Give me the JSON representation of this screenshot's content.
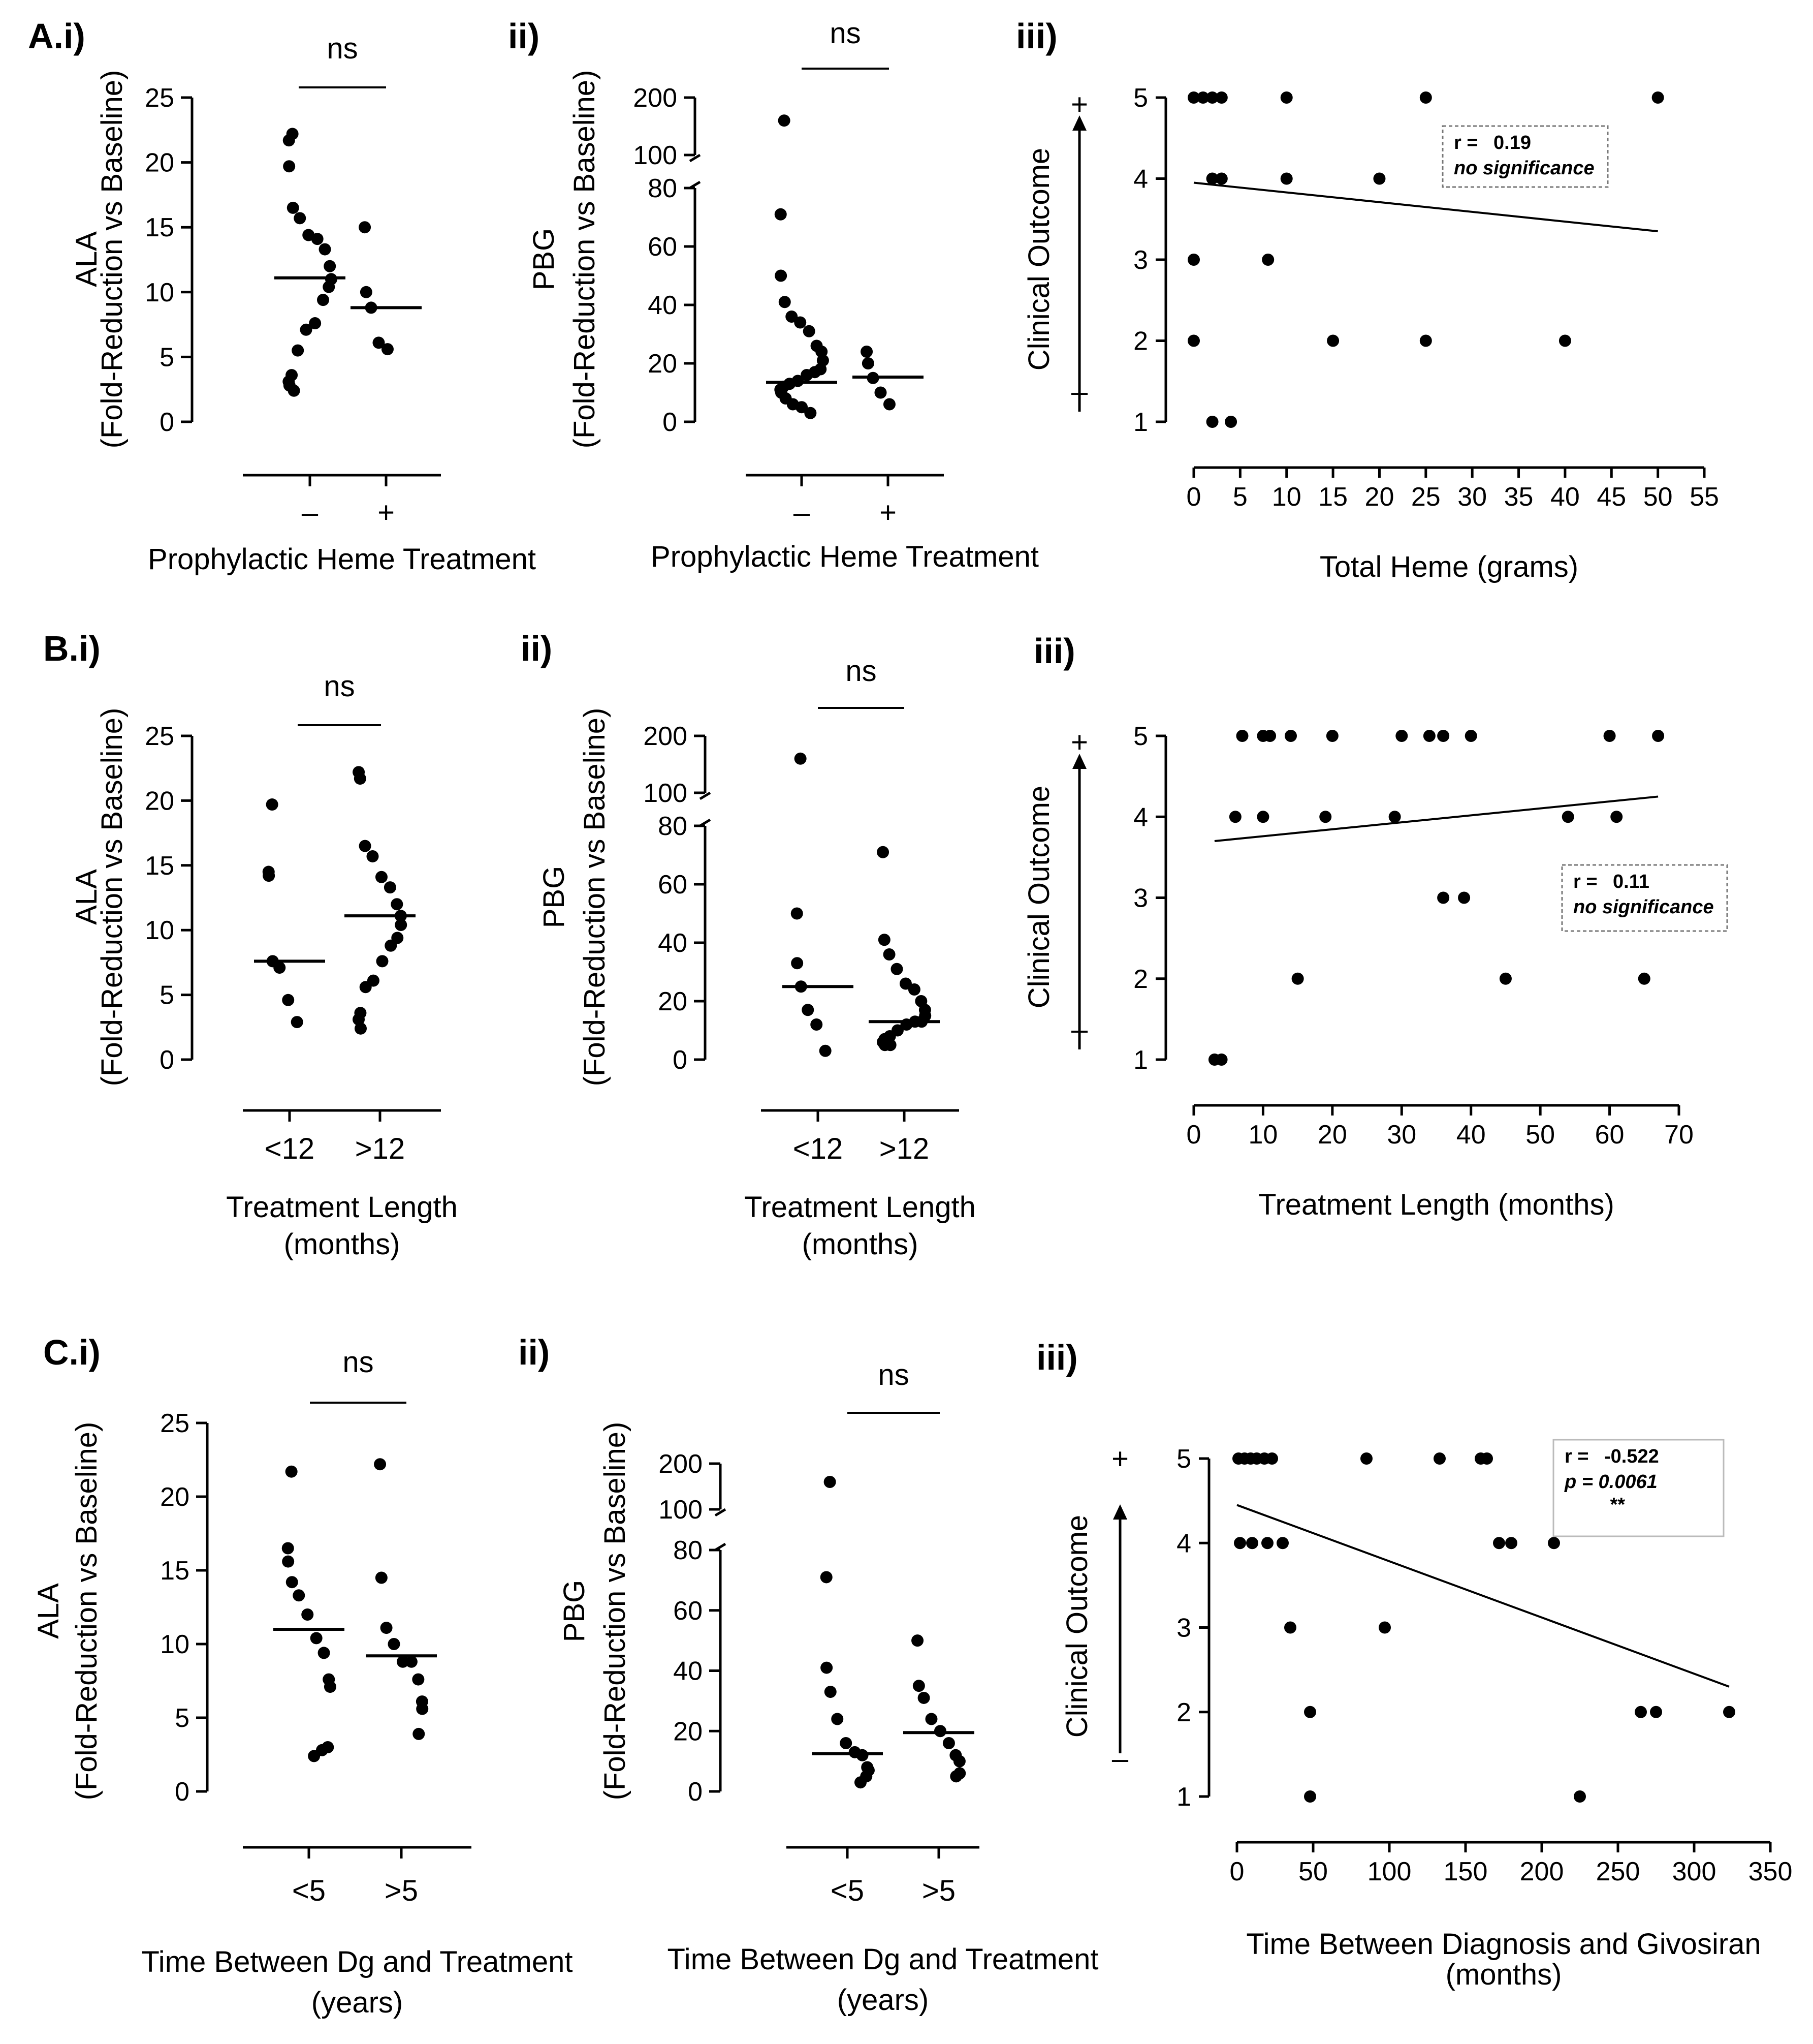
{
  "figure": {
    "rows": [
      {
        "row_label": "A.i)",
        "panel_labels": [
          "ii)",
          "iii)"
        ]
      },
      {
        "row_label": "B.i)",
        "panel_labels": [
          "ii)",
          "iii)"
        ]
      },
      {
        "row_label": "C.i)",
        "panel_labels": [
          "ii)",
          "iii)"
        ]
      }
    ]
  },
  "chart_data": [
    {
      "id": "A-i",
      "type": "scatter",
      "ylabel_lines": [
        "ALA",
        "(Fold-Reduction vs Baseline)"
      ],
      "xlabel_lines": [
        "Prophylactic Heme Treatment"
      ],
      "categories": [
        "–",
        "+"
      ],
      "yticks": [
        0,
        5,
        10,
        15,
        20,
        25
      ],
      "ylim": [
        0,
        25
      ],
      "significance": "ns",
      "groups": [
        {
          "category": "–",
          "median": 11.1,
          "values": [
            22.2,
            21.7,
            19.7,
            16.5,
            15.7,
            14.4,
            14.1,
            13.3,
            12.0,
            11.0,
            10.4,
            9.4,
            7.6,
            7.1,
            5.5,
            3.6,
            3.1,
            2.8,
            2.4
          ]
        },
        {
          "category": "+",
          "median": 8.8,
          "values": [
            15.0,
            10.0,
            8.8,
            6.1,
            5.6
          ]
        }
      ]
    },
    {
      "id": "A-ii",
      "type": "scatter",
      "ylabel_lines": [
        "PBG",
        "(Fold-Reduction vs Baseline)"
      ],
      "xlabel_lines": [
        "Prophylactic Heme Treatment"
      ],
      "categories": [
        "–",
        "+"
      ],
      "yticks": [
        0,
        20,
        40,
        60,
        80,
        100,
        200
      ],
      "ylim": [
        0,
        200
      ],
      "y_axis_break": [
        80,
        100
      ],
      "significance": "ns",
      "groups": [
        {
          "category": "–",
          "median": 13.5,
          "values": [
            160,
            71,
            50,
            41,
            36,
            34,
            31,
            26,
            24,
            21,
            18,
            17,
            16,
            14,
            13,
            12,
            11,
            10,
            8,
            6,
            5,
            3
          ]
        },
        {
          "category": "+",
          "median": 15.3,
          "values": [
            24,
            20,
            15,
            10,
            6
          ]
        }
      ]
    },
    {
      "id": "A-iii",
      "type": "scatter",
      "ylabel_lines": [
        "Clinical Outcome"
      ],
      "xlabel_lines": [
        "Total Heme (grams)"
      ],
      "xticks": [
        0,
        5,
        10,
        15,
        20,
        25,
        30,
        35,
        40,
        45,
        50,
        55
      ],
      "xlim": [
        0,
        55
      ],
      "yticks": [
        1,
        2,
        3,
        4,
        5
      ],
      "ylim": [
        1,
        5
      ],
      "y_direction_labels": {
        "top": "+",
        "bottom": "–"
      },
      "points": [
        [
          0,
          5
        ],
        [
          1,
          5
        ],
        [
          2,
          5
        ],
        [
          3,
          5
        ],
        [
          10,
          5
        ],
        [
          25,
          5
        ],
        [
          50,
          5
        ],
        [
          2,
          4
        ],
        [
          3,
          4
        ],
        [
          10,
          4
        ],
        [
          20,
          4
        ],
        [
          0,
          3
        ],
        [
          8,
          3
        ],
        [
          0,
          2
        ],
        [
          15,
          2
        ],
        [
          25,
          2
        ],
        [
          40,
          2
        ],
        [
          2,
          1
        ],
        [
          4,
          1
        ]
      ],
      "fit_line": {
        "x": [
          0,
          50
        ],
        "y": [
          3.95,
          3.35
        ]
      },
      "annotation": {
        "r_label": "r =",
        "r_value": "0.19",
        "note": "no significance"
      }
    },
    {
      "id": "B-i",
      "type": "scatter",
      "ylabel_lines": [
        "ALA",
        "(Fold-Reduction vs Baseline)"
      ],
      "xlabel_lines": [
        "Treatment Length",
        "(months)"
      ],
      "categories": [
        "<12",
        ">12"
      ],
      "yticks": [
        0,
        5,
        10,
        15,
        20,
        25
      ],
      "ylim": [
        0,
        25
      ],
      "significance": "ns",
      "groups": [
        {
          "category": "<12",
          "median": 7.6,
          "values": [
            19.7,
            14.5,
            14.2,
            7.6,
            7.1,
            4.6,
            2.9
          ]
        },
        {
          "category": ">12",
          "median": 11.1,
          "values": [
            22.2,
            21.7,
            16.5,
            15.7,
            14.1,
            13.3,
            12.0,
            11.1,
            10.4,
            9.4,
            8.8,
            7.6,
            6.1,
            5.6,
            3.6,
            3.1,
            2.4
          ]
        }
      ]
    },
    {
      "id": "B-ii",
      "type": "scatter",
      "ylabel_lines": [
        "PBG",
        "(Fold-Reduction vs Baseline)"
      ],
      "xlabel_lines": [
        "Treatment Length",
        "(months)"
      ],
      "categories": [
        "<12",
        ">12"
      ],
      "yticks": [
        0,
        20,
        40,
        60,
        80,
        100,
        200
      ],
      "ylim": [
        0,
        200
      ],
      "y_axis_break": [
        80,
        100
      ],
      "significance": "ns",
      "groups": [
        {
          "category": "<12",
          "median": 25,
          "values": [
            160,
            50,
            33,
            25,
            17,
            12,
            3
          ]
        },
        {
          "category": ">12",
          "median": 13,
          "values": [
            71,
            41,
            36,
            31,
            26,
            24,
            20,
            17,
            15,
            13,
            13,
            12,
            10,
            8,
            7,
            6,
            5,
            5
          ]
        }
      ]
    },
    {
      "id": "B-iii",
      "type": "scatter",
      "ylabel_lines": [
        "Clinical Outcome"
      ],
      "xlabel_lines": [
        "Treatment Length (months)"
      ],
      "xticks": [
        0,
        10,
        20,
        30,
        40,
        50,
        60,
        70
      ],
      "xlim": [
        0,
        70
      ],
      "yticks": [
        1,
        2,
        3,
        4,
        5
      ],
      "ylim": [
        1,
        5
      ],
      "y_direction_labels": {
        "top": "+",
        "bottom": "–"
      },
      "points": [
        [
          7,
          5
        ],
        [
          10,
          5
        ],
        [
          11,
          5
        ],
        [
          14,
          5
        ],
        [
          20,
          5
        ],
        [
          30,
          5
        ],
        [
          34,
          5
        ],
        [
          36,
          5
        ],
        [
          40,
          5
        ],
        [
          60,
          5
        ],
        [
          67,
          5
        ],
        [
          6,
          4
        ],
        [
          10,
          4
        ],
        [
          19,
          4
        ],
        [
          29,
          4
        ],
        [
          54,
          4
        ],
        [
          61,
          4
        ],
        [
          36,
          3
        ],
        [
          39,
          3
        ],
        [
          15,
          2
        ],
        [
          45,
          2
        ],
        [
          65,
          2
        ],
        [
          3,
          1
        ],
        [
          4,
          1
        ]
      ],
      "fit_line": {
        "x": [
          3,
          67
        ],
        "y": [
          3.7,
          4.25
        ]
      },
      "annotation": {
        "r_label": "r =",
        "r_value": "0.11",
        "note": "no significance"
      }
    },
    {
      "id": "C-i",
      "type": "scatter",
      "ylabel_lines": [
        "ALA",
        "(Fold-Reduction vs Baseline)"
      ],
      "xlabel_lines": [
        "Time Between Dg and Treatment",
        "(years)"
      ],
      "categories": [
        "<5",
        ">5"
      ],
      "yticks": [
        0,
        5,
        10,
        15,
        20,
        25
      ],
      "ylim": [
        0,
        25
      ],
      "significance": "ns",
      "groups": [
        {
          "category": "<5",
          "median": 11.0,
          "values": [
            21.7,
            16.5,
            15.6,
            14.2,
            13.3,
            12.0,
            10.4,
            9.4,
            7.6,
            7.1,
            3.0,
            2.8,
            2.4
          ]
        },
        {
          "category": ">5",
          "median": 9.2,
          "values": [
            22.2,
            14.5,
            11.1,
            10.0,
            8.8,
            8.8,
            7.6,
            6.1,
            5.6,
            3.9
          ]
        }
      ]
    },
    {
      "id": "C-ii",
      "type": "scatter",
      "ylabel_lines": [
        "PBG",
        "(Fold-Reduction vs Baseline)"
      ],
      "xlabel_lines": [
        "Time Between Dg and Treatment",
        "(years)"
      ],
      "categories": [
        "<5",
        ">5"
      ],
      "yticks": [
        0,
        20,
        40,
        60,
        80,
        100,
        200
      ],
      "ylim": [
        0,
        200
      ],
      "y_axis_break": [
        80,
        100
      ],
      "significance": "ns",
      "groups": [
        {
          "category": "<5",
          "median": 12.5,
          "values": [
            160,
            71,
            41,
            33,
            24,
            16,
            13,
            12,
            8,
            7,
            5,
            3
          ]
        },
        {
          "category": ">5",
          "median": 19.5,
          "values": [
            50,
            35,
            31,
            24,
            20,
            16,
            12,
            10,
            6,
            5
          ]
        }
      ]
    },
    {
      "id": "C-iii",
      "type": "scatter",
      "ylabel_lines": [
        "Clinical Outcome"
      ],
      "xlabel_lines": [
        "Time Between Diagnosis and Givosiran",
        "(months)"
      ],
      "xticks": [
        0,
        50,
        100,
        150,
        200,
        250,
        300,
        350
      ],
      "xlim": [
        0,
        350
      ],
      "yticks": [
        1,
        2,
        3,
        4,
        5
      ],
      "ylim": [
        1,
        5
      ],
      "y_direction_labels": {
        "top": "+",
        "bottom": "–"
      },
      "points": [
        [
          1,
          5
        ],
        [
          5,
          5
        ],
        [
          9,
          5
        ],
        [
          13,
          5
        ],
        [
          18,
          5
        ],
        [
          23,
          5
        ],
        [
          85,
          5
        ],
        [
          133,
          5
        ],
        [
          160,
          5
        ],
        [
          164,
          5
        ],
        [
          2,
          4
        ],
        [
          10,
          4
        ],
        [
          20,
          4
        ],
        [
          30,
          4
        ],
        [
          172,
          4
        ],
        [
          180,
          4
        ],
        [
          208,
          4
        ],
        [
          35,
          3
        ],
        [
          97,
          3
        ],
        [
          48,
          2
        ],
        [
          265,
          2
        ],
        [
          275,
          2
        ],
        [
          323,
          2
        ],
        [
          48,
          1
        ],
        [
          225,
          1
        ]
      ],
      "fit_line": {
        "x": [
          0,
          323
        ],
        "y": [
          4.45,
          2.3
        ]
      },
      "annotation": {
        "r_label": "r =",
        "r_value": "-0.522",
        "p_text": "p = 0.0061",
        "stars": "**"
      }
    }
  ]
}
